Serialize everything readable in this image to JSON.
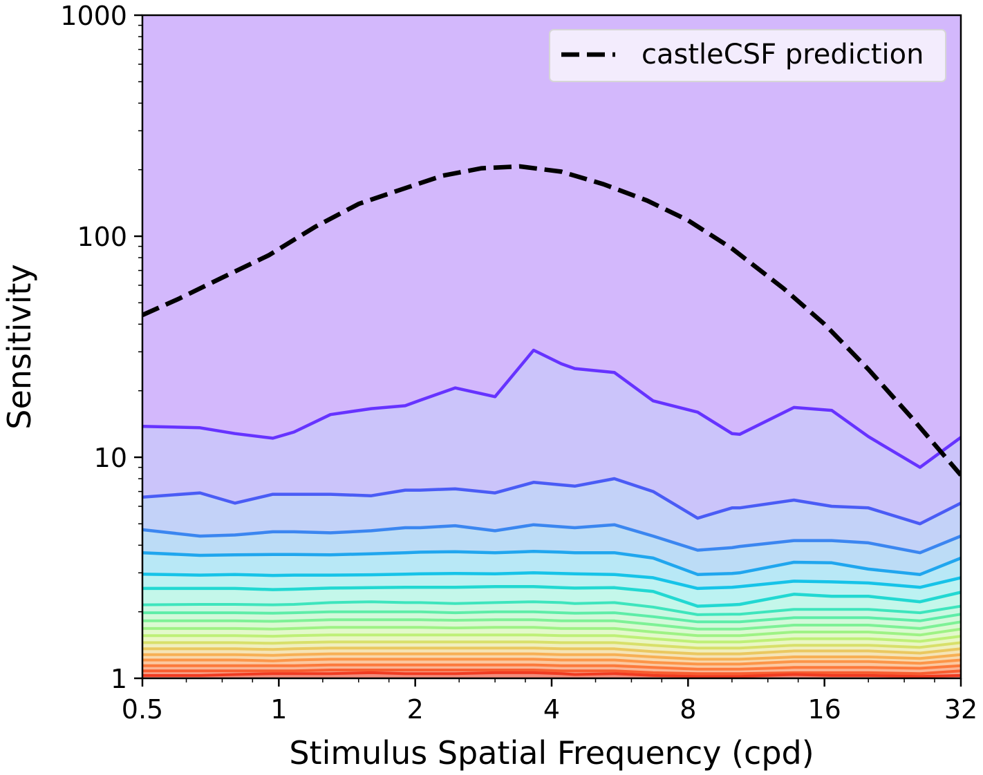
{
  "chart_data": {
    "type": "line",
    "title": "",
    "xlabel": "Stimulus Spatial Frequency (cpd)",
    "ylabel": "Sensitivity",
    "xscale": "log2",
    "yscale": "log10",
    "xlim": [
      0.5,
      32
    ],
    "ylim": [
      1,
      1000
    ],
    "x_ticks": [
      0.5,
      1,
      2,
      4,
      8,
      16,
      32
    ],
    "x_tick_labels": [
      "0.5",
      "1",
      "2",
      "4",
      "8",
      "16",
      "32"
    ],
    "y_ticks": [
      1,
      10,
      100,
      1000
    ],
    "y_tick_labels": [
      "1",
      "10",
      "100",
      "1000"
    ],
    "grid": false,
    "legend_position": "top-right",
    "x": [
      0.5,
      0.67,
      0.8,
      0.97,
      1.08,
      1.3,
      1.6,
      1.9,
      2.05,
      2.45,
      3.0,
      3.65,
      4.2,
      4.5,
      5.5,
      6.7,
      8.4,
      10.0,
      10.4,
      13.7,
      16.6,
      20.0,
      26.0,
      32.0
    ],
    "contour_levels": [
      {
        "name": "L1",
        "color": "#6633ff",
        "fill": "#cbc4fa",
        "values": [
          13.8,
          13.6,
          12.8,
          12.2,
          13.0,
          15.6,
          16.6,
          17.1,
          18.1,
          20.6,
          18.8,
          30.5,
          26.5,
          25.2,
          24.2,
          18.0,
          16.0,
          12.8,
          12.7,
          16.8,
          16.3,
          12.4,
          9.0,
          12.3
        ]
      },
      {
        "name": "L2",
        "color": "#4a5cf5",
        "fill": "#c3d2f8",
        "values": [
          6.6,
          6.9,
          6.2,
          6.8,
          6.8,
          6.8,
          6.7,
          7.1,
          7.1,
          7.2,
          6.9,
          7.7,
          7.5,
          7.4,
          8.0,
          7.0,
          5.3,
          5.9,
          5.9,
          6.4,
          6.0,
          5.9,
          5.0,
          6.2
        ]
      },
      {
        "name": "L3",
        "color": "#3b86f0",
        "fill": "#bcdcf6",
        "values": [
          4.7,
          4.4,
          4.45,
          4.6,
          4.6,
          4.55,
          4.65,
          4.8,
          4.8,
          4.9,
          4.65,
          4.95,
          4.85,
          4.8,
          4.95,
          4.4,
          3.8,
          3.9,
          3.95,
          4.2,
          4.2,
          4.1,
          3.7,
          4.4
        ]
      },
      {
        "name": "L4",
        "color": "#20a6ee",
        "fill": "#b8e8f6",
        "values": [
          3.7,
          3.6,
          3.62,
          3.63,
          3.63,
          3.62,
          3.66,
          3.7,
          3.72,
          3.74,
          3.7,
          3.75,
          3.72,
          3.7,
          3.7,
          3.5,
          2.95,
          2.98,
          3.0,
          3.35,
          3.33,
          3.12,
          2.95,
          3.5
        ]
      },
      {
        "name": "L5",
        "color": "#16c3e8",
        "fill": "#bcf2f2",
        "values": [
          2.96,
          2.93,
          2.95,
          2.92,
          2.93,
          2.93,
          2.94,
          2.96,
          2.97,
          2.98,
          2.97,
          3.0,
          2.98,
          2.97,
          2.95,
          2.85,
          2.55,
          2.58,
          2.6,
          2.75,
          2.73,
          2.7,
          2.58,
          2.85
        ]
      },
      {
        "name": "L6",
        "color": "#22d8d2",
        "fill": "#c4f7ea",
        "values": [
          2.55,
          2.55,
          2.55,
          2.52,
          2.53,
          2.56,
          2.57,
          2.58,
          2.58,
          2.58,
          2.6,
          2.6,
          2.57,
          2.56,
          2.57,
          2.47,
          2.12,
          2.15,
          2.16,
          2.4,
          2.35,
          2.35,
          2.22,
          2.45
        ]
      },
      {
        "name": "L7",
        "color": "#3ee5bd",
        "fill": "#cbf8e2",
        "values": [
          2.15,
          2.16,
          2.16,
          2.15,
          2.16,
          2.2,
          2.22,
          2.2,
          2.2,
          2.18,
          2.2,
          2.22,
          2.2,
          2.18,
          2.2,
          2.1,
          1.94,
          1.95,
          1.95,
          2.05,
          2.05,
          2.05,
          1.98,
          2.12
        ]
      },
      {
        "name": "L8",
        "color": "#5eeda8",
        "fill": "#d3f9da",
        "values": [
          1.98,
          1.98,
          1.98,
          1.97,
          1.98,
          2.0,
          2.0,
          2.0,
          2.0,
          1.98,
          2.0,
          2.0,
          1.98,
          1.97,
          1.98,
          1.9,
          1.8,
          1.8,
          1.8,
          1.88,
          1.88,
          1.88,
          1.82,
          1.95
        ]
      },
      {
        "name": "L9",
        "color": "#7ef196",
        "fill": "#dbfad2",
        "values": [
          1.82,
          1.82,
          1.82,
          1.81,
          1.82,
          1.84,
          1.84,
          1.84,
          1.84,
          1.83,
          1.84,
          1.84,
          1.82,
          1.82,
          1.82,
          1.75,
          1.67,
          1.67,
          1.67,
          1.74,
          1.74,
          1.74,
          1.68,
          1.8
        ]
      },
      {
        "name": "L10",
        "color": "#9ef285",
        "fill": "#e3f9cb",
        "values": [
          1.68,
          1.68,
          1.68,
          1.67,
          1.68,
          1.7,
          1.7,
          1.7,
          1.7,
          1.69,
          1.7,
          1.7,
          1.68,
          1.68,
          1.68,
          1.62,
          1.56,
          1.56,
          1.56,
          1.62,
          1.62,
          1.62,
          1.57,
          1.67
        ]
      },
      {
        "name": "L11",
        "color": "#bef077",
        "fill": "#eaf7c4",
        "values": [
          1.56,
          1.56,
          1.56,
          1.55,
          1.56,
          1.57,
          1.57,
          1.57,
          1.57,
          1.57,
          1.57,
          1.57,
          1.56,
          1.56,
          1.56,
          1.51,
          1.46,
          1.46,
          1.46,
          1.51,
          1.51,
          1.51,
          1.47,
          1.55
        ]
      },
      {
        "name": "L12",
        "color": "#d8e06a",
        "fill": "#f0efbe",
        "values": [
          1.45,
          1.45,
          1.45,
          1.44,
          1.45,
          1.46,
          1.46,
          1.46,
          1.46,
          1.46,
          1.46,
          1.46,
          1.45,
          1.45,
          1.45,
          1.41,
          1.37,
          1.37,
          1.37,
          1.41,
          1.41,
          1.41,
          1.38,
          1.45
        ]
      },
      {
        "name": "L13",
        "color": "#eac860",
        "fill": "#f5e4b6",
        "values": [
          1.36,
          1.36,
          1.36,
          1.35,
          1.36,
          1.37,
          1.37,
          1.37,
          1.37,
          1.37,
          1.37,
          1.37,
          1.36,
          1.36,
          1.36,
          1.32,
          1.29,
          1.29,
          1.29,
          1.33,
          1.33,
          1.33,
          1.3,
          1.36
        ]
      },
      {
        "name": "L14",
        "color": "#f7b055",
        "fill": "#f9d8ac",
        "values": [
          1.28,
          1.28,
          1.28,
          1.27,
          1.28,
          1.29,
          1.29,
          1.29,
          1.29,
          1.29,
          1.29,
          1.29,
          1.28,
          1.28,
          1.28,
          1.25,
          1.22,
          1.22,
          1.22,
          1.25,
          1.25,
          1.25,
          1.23,
          1.28
        ]
      },
      {
        "name": "L15",
        "color": "#fc9548",
        "fill": "#fcc8a0",
        "values": [
          1.21,
          1.21,
          1.21,
          1.2,
          1.21,
          1.22,
          1.22,
          1.22,
          1.22,
          1.22,
          1.22,
          1.22,
          1.21,
          1.21,
          1.21,
          1.18,
          1.16,
          1.16,
          1.16,
          1.19,
          1.19,
          1.19,
          1.17,
          1.21
        ]
      },
      {
        "name": "L16",
        "color": "#fc7a3c",
        "fill": "#fbb594",
        "values": [
          1.14,
          1.14,
          1.14,
          1.14,
          1.14,
          1.15,
          1.15,
          1.15,
          1.15,
          1.15,
          1.15,
          1.15,
          1.14,
          1.14,
          1.14,
          1.12,
          1.1,
          1.1,
          1.1,
          1.12,
          1.12,
          1.12,
          1.11,
          1.14
        ]
      },
      {
        "name": "L17",
        "color": "#f85e30",
        "fill": "#f8a188",
        "values": [
          1.08,
          1.08,
          1.08,
          1.08,
          1.08,
          1.09,
          1.09,
          1.09,
          1.09,
          1.09,
          1.09,
          1.09,
          1.08,
          1.08,
          1.08,
          1.06,
          1.05,
          1.05,
          1.05,
          1.06,
          1.06,
          1.06,
          1.05,
          1.08
        ]
      },
      {
        "name": "L18",
        "color": "#f03c22",
        "fill": "#f48c7c",
        "values": [
          1.03,
          1.03,
          1.04,
          1.05,
          1.05,
          1.05,
          1.06,
          1.05,
          1.05,
          1.05,
          1.06,
          1.06,
          1.05,
          1.04,
          1.05,
          1.03,
          1.02,
          1.02,
          1.02,
          1.04,
          1.03,
          1.03,
          1.02,
          1.03
        ]
      }
    ],
    "top_region_fill": "#d3b8fc",
    "series": [
      {
        "name": "castleCSF prediction",
        "style": "dashed",
        "color": "#000000",
        "x": [
          0.5,
          0.6,
          0.75,
          0.95,
          1.2,
          1.5,
          1.9,
          2.3,
          2.8,
          3.4,
          4.2,
          5.2,
          6.5,
          8.0,
          10.0,
          13.0,
          16.0,
          20.0,
          25.0,
          32.0
        ],
        "values": [
          44,
          52,
          65,
          82,
          110,
          140,
          165,
          188,
          203,
          207,
          196,
          172,
          145,
          118,
          88,
          58,
          40,
          25,
          15,
          8.3
        ]
      }
    ]
  }
}
